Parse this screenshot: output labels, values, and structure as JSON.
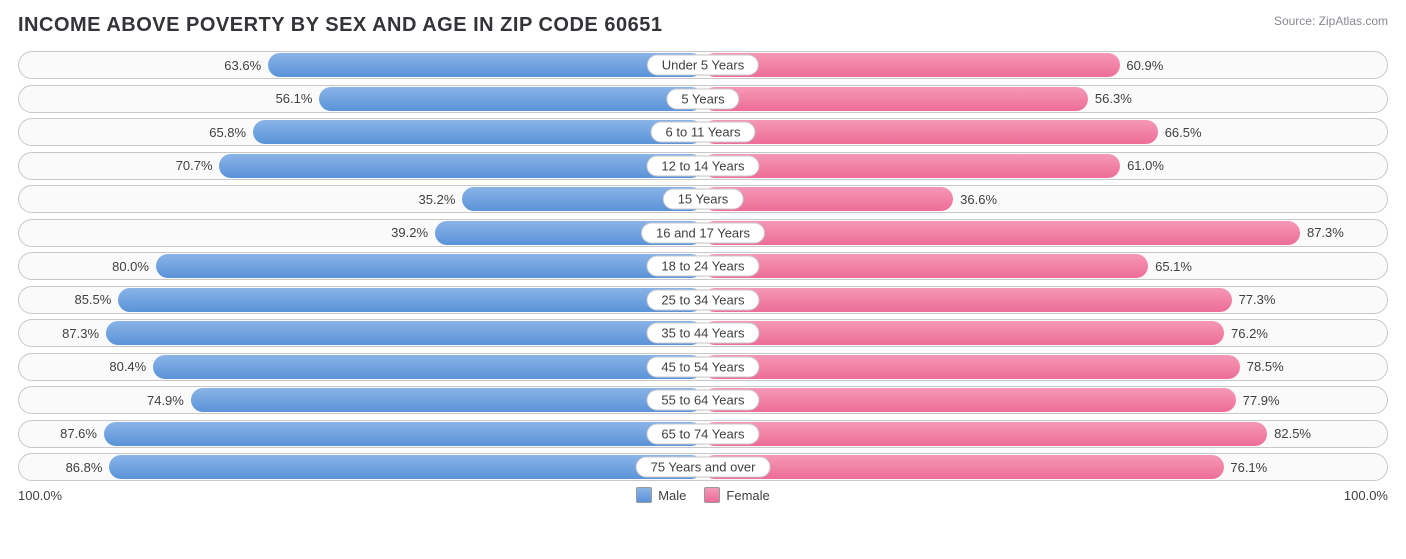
{
  "title": "INCOME ABOVE POVERTY BY SEX AND AGE IN ZIP CODE 60651",
  "source": "Source: ZipAtlas.com",
  "axis_left": "100.0%",
  "axis_right": "100.0%",
  "legend": {
    "male": "Male",
    "female": "Female"
  },
  "colors": {
    "male_top": "#8ab4e8",
    "male_bot": "#5a93d8",
    "female_top": "#f598b6",
    "female_bot": "#ed6d97",
    "row_border": "#c8c8cc",
    "row_bg": "#fafafa",
    "text": "#404044",
    "title_text": "#333338",
    "source_text": "#888890"
  },
  "max_pct": 100.0,
  "rows": [
    {
      "category": "Under 5 Years",
      "male": 63.6,
      "female": 60.9
    },
    {
      "category": "5 Years",
      "male": 56.1,
      "female": 56.3
    },
    {
      "category": "6 to 11 Years",
      "male": 65.8,
      "female": 66.5
    },
    {
      "category": "12 to 14 Years",
      "male": 70.7,
      "female": 61.0
    },
    {
      "category": "15 Years",
      "male": 35.2,
      "female": 36.6
    },
    {
      "category": "16 and 17 Years",
      "male": 39.2,
      "female": 87.3
    },
    {
      "category": "18 to 24 Years",
      "male": 80.0,
      "female": 65.1
    },
    {
      "category": "25 to 34 Years",
      "male": 85.5,
      "female": 77.3
    },
    {
      "category": "35 to 44 Years",
      "male": 87.3,
      "female": 76.2
    },
    {
      "category": "45 to 54 Years",
      "male": 80.4,
      "female": 78.5
    },
    {
      "category": "55 to 64 Years",
      "male": 74.9,
      "female": 77.9
    },
    {
      "category": "65 to 74 Years",
      "male": 87.6,
      "female": 82.5
    },
    {
      "category": "75 Years and over",
      "male": 86.8,
      "female": 76.1
    }
  ]
}
